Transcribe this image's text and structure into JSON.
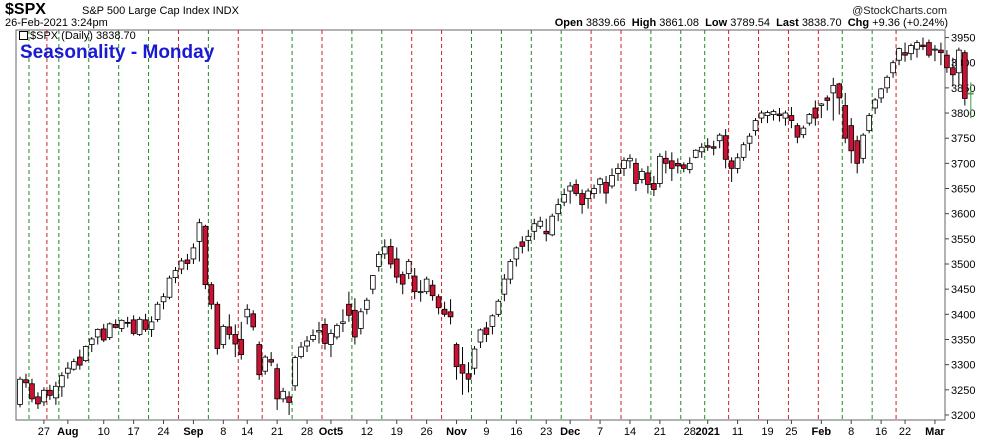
{
  "header": {
    "symbol": "$SPX",
    "subtitle": "S&P 500 Large Cap Index INDX",
    "datetime": "26-Feb-2021 3:24pm",
    "watermark": "@StockCharts.com",
    "open_label": "Open",
    "open": "3839.66",
    "high_label": "High",
    "high": "3861.08",
    "low_label": "Low",
    "low": "3789.54",
    "last_label": "Last",
    "last": "3838.70",
    "chg_label": "Chg",
    "chg": "+9.36 (+0.24%)"
  },
  "legend": {
    "series_label": "$SPX (Daily) 3838.70"
  },
  "annotation": {
    "text": "Seasonality - Monday"
  },
  "colors": {
    "up": "#ffffff",
    "down": "#cc1133",
    "outline": "#000000",
    "green_vline": "#1e8c1e",
    "red_vline": "#d42020",
    "last_bar": "#7ed67e"
  },
  "chart_data": {
    "type": "candlestick",
    "title": "$SPX",
    "ylim": [
      3190,
      3965
    ],
    "yticks": [
      3200,
      3250,
      3300,
      3350,
      3400,
      3450,
      3500,
      3550,
      3600,
      3650,
      3700,
      3750,
      3800,
      3850,
      3900,
      3950
    ],
    "x_tick_labels": [
      {
        "label": "27",
        "index": 4
      },
      {
        "label": "Aug",
        "index": 8,
        "bold": true
      },
      {
        "label": "10",
        "index": 14
      },
      {
        "label": "17",
        "index": 19
      },
      {
        "label": "24",
        "index": 24
      },
      {
        "label": "Sep",
        "index": 29,
        "bold": true
      },
      {
        "label": "8",
        "index": 34
      },
      {
        "label": "14",
        "index": 38
      },
      {
        "label": "21",
        "index": 43
      },
      {
        "label": "28",
        "index": 48
      },
      {
        "label": "Oct5",
        "index": 52,
        "bold": true
      },
      {
        "label": "12",
        "index": 58
      },
      {
        "label": "19",
        "index": 63
      },
      {
        "label": "26",
        "index": 68
      },
      {
        "label": "Nov",
        "index": 73,
        "bold": true
      },
      {
        "label": "9",
        "index": 78
      },
      {
        "label": "16",
        "index": 83
      },
      {
        "label": "23",
        "index": 88
      },
      {
        "label": "Dec",
        "index": 92,
        "bold": true
      },
      {
        "label": "7",
        "index": 97
      },
      {
        "label": "14",
        "index": 102
      },
      {
        "label": "21",
        "index": 107
      },
      {
        "label": "28",
        "index": 112
      },
      {
        "label": "2021",
        "index": 115,
        "bold": true
      },
      {
        "label": "11",
        "index": 120
      },
      {
        "label": "19",
        "index": 125
      },
      {
        "label": "25",
        "index": 129
      },
      {
        "label": "Feb",
        "index": 134,
        "bold": true
      },
      {
        "label": "8",
        "index": 139
      },
      {
        "label": "16",
        "index": 144
      },
      {
        "label": "22",
        "index": 148
      },
      {
        "label": "Mar",
        "index": 153,
        "bold": true
      }
    ],
    "vlines": [
      {
        "index": 1.5,
        "color": "green"
      },
      {
        "index": 4.5,
        "color": "red"
      },
      {
        "index": 6.5,
        "color": "green"
      },
      {
        "index": 11.5,
        "color": "green"
      },
      {
        "index": 16.5,
        "color": "green"
      },
      {
        "index": 21.5,
        "color": "green"
      },
      {
        "index": 26.5,
        "color": "red"
      },
      {
        "index": 31.5,
        "color": "green"
      },
      {
        "index": 36.5,
        "color": "red"
      },
      {
        "index": 40.5,
        "color": "red"
      },
      {
        "index": 45.5,
        "color": "green"
      },
      {
        "index": 50.5,
        "color": "red"
      },
      {
        "index": 55.5,
        "color": "green"
      },
      {
        "index": 60.5,
        "color": "green"
      },
      {
        "index": 65.5,
        "color": "red"
      },
      {
        "index": 70.5,
        "color": "red"
      },
      {
        "index": 75.5,
        "color": "green"
      },
      {
        "index": 80.5,
        "color": "green"
      },
      {
        "index": 85.5,
        "color": "green"
      },
      {
        "index": 90.5,
        "color": "green"
      },
      {
        "index": 95.5,
        "color": "red"
      },
      {
        "index": 100.5,
        "color": "red"
      },
      {
        "index": 105.5,
        "color": "green"
      },
      {
        "index": 110.5,
        "color": "green"
      },
      {
        "index": 114.5,
        "color": "green"
      },
      {
        "index": 118.5,
        "color": "red"
      },
      {
        "index": 123.5,
        "color": "red"
      },
      {
        "index": 128.5,
        "color": "red"
      },
      {
        "index": 133.5,
        "color": "red"
      },
      {
        "index": 137.5,
        "color": "green"
      },
      {
        "index": 142.5,
        "color": "green"
      },
      {
        "index": 146.5,
        "color": "red"
      }
    ],
    "ohlc": [
      [
        3221,
        3276,
        3215,
        3271
      ],
      [
        3270,
        3282,
        3254,
        3264
      ],
      [
        3262,
        3272,
        3225,
        3232
      ],
      [
        3236,
        3245,
        3212,
        3222
      ],
      [
        3226,
        3255,
        3218,
        3249
      ],
      [
        3249,
        3260,
        3230,
        3239
      ],
      [
        3234,
        3266,
        3220,
        3257
      ],
      [
        3256,
        3285,
        3236,
        3278
      ],
      [
        3283,
        3305,
        3272,
        3293
      ],
      [
        3291,
        3312,
        3288,
        3306
      ],
      [
        3315,
        3330,
        3290,
        3299
      ],
      [
        3308,
        3338,
        3305,
        3336
      ],
      [
        3340,
        3355,
        3325,
        3351
      ],
      [
        3355,
        3372,
        3340,
        3370
      ],
      [
        3371,
        3381,
        3345,
        3349
      ],
      [
        3354,
        3384,
        3349,
        3381
      ],
      [
        3380,
        3390,
        3372,
        3374
      ],
      [
        3372,
        3390,
        3365,
        3388
      ],
      [
        3384,
        3395,
        3374,
        3382
      ],
      [
        3389,
        3398,
        3358,
        3362
      ],
      [
        3360,
        3395,
        3357,
        3390
      ],
      [
        3389,
        3401,
        3365,
        3370
      ],
      [
        3370,
        3396,
        3355,
        3385
      ],
      [
        3390,
        3425,
        3385,
        3420
      ],
      [
        3425,
        3442,
        3410,
        3435
      ],
      [
        3434,
        3477,
        3430,
        3472
      ],
      [
        3473,
        3494,
        3462,
        3487
      ],
      [
        3490,
        3512,
        3480,
        3506
      ],
      [
        3508,
        3520,
        3488,
        3501
      ],
      [
        3510,
        3541,
        3500,
        3532
      ],
      [
        3545,
        3590,
        3505,
        3582
      ],
      [
        3575,
        3578,
        3450,
        3459
      ],
      [
        3459,
        3464,
        3410,
        3420
      ],
      [
        3420,
        3425,
        3320,
        3332
      ],
      [
        3340,
        3380,
        3332,
        3376
      ],
      [
        3375,
        3400,
        3350,
        3360
      ],
      [
        3360,
        3380,
        3315,
        3341
      ],
      [
        3350,
        3385,
        3310,
        3320
      ],
      [
        3395,
        3420,
        3380,
        3410
      ],
      [
        3401,
        3408,
        3368,
        3375
      ],
      [
        3340,
        3346,
        3270,
        3280
      ],
      [
        3287,
        3319,
        3280,
        3315
      ],
      [
        3310,
        3325,
        3297,
        3305
      ],
      [
        3292,
        3302,
        3210,
        3232
      ],
      [
        3232,
        3254,
        3225,
        3247
      ],
      [
        3236,
        3247,
        3200,
        3225
      ],
      [
        3258,
        3318,
        3248,
        3314
      ],
      [
        3316,
        3345,
        3312,
        3335
      ],
      [
        3337,
        3357,
        3325,
        3347
      ],
      [
        3350,
        3370,
        3345,
        3358
      ],
      [
        3365,
        3385,
        3342,
        3368
      ],
      [
        3380,
        3392,
        3330,
        3342
      ],
      [
        3340,
        3370,
        3315,
        3362
      ],
      [
        3355,
        3382,
        3350,
        3378
      ],
      [
        3382,
        3410,
        3365,
        3385
      ],
      [
        3420,
        3445,
        3385,
        3398
      ],
      [
        3408,
        3432,
        3340,
        3355
      ],
      [
        3372,
        3412,
        3360,
        3405
      ],
      [
        3410,
        3433,
        3400,
        3428
      ],
      [
        3450,
        3478,
        3440,
        3477
      ],
      [
        3495,
        3525,
        3485,
        3519
      ],
      [
        3520,
        3549,
        3510,
        3534
      ],
      [
        3535,
        3550,
        3491,
        3500
      ],
      [
        3510,
        3533,
        3462,
        3474
      ],
      [
        3479,
        3485,
        3440,
        3460
      ],
      [
        3481,
        3510,
        3470,
        3505
      ],
      [
        3476,
        3492,
        3430,
        3445
      ],
      [
        3445,
        3468,
        3425,
        3445
      ],
      [
        3445,
        3475,
        3440,
        3470
      ],
      [
        3458,
        3468,
        3427,
        3437
      ],
      [
        3435,
        3440,
        3400,
        3413
      ],
      [
        3410,
        3425,
        3395,
        3400
      ],
      [
        3405,
        3430,
        3380,
        3395
      ],
      [
        3340,
        3344,
        3270,
        3296
      ],
      [
        3300,
        3335,
        3240,
        3283
      ],
      [
        3282,
        3305,
        3245,
        3271
      ],
      [
        3293,
        3337,
        3280,
        3331
      ],
      [
        3345,
        3372,
        3333,
        3369
      ],
      [
        3373,
        3385,
        3345,
        3360
      ],
      [
        3376,
        3400,
        3360,
        3397
      ],
      [
        3400,
        3430,
        3395,
        3426
      ],
      [
        3440,
        3480,
        3426,
        3470
      ],
      [
        3470,
        3510,
        3460,
        3505
      ],
      [
        3510,
        3535,
        3495,
        3532
      ],
      [
        3544,
        3555,
        3521,
        3535
      ],
      [
        3547,
        3568,
        3525,
        3555
      ],
      [
        3565,
        3590,
        3548,
        3580
      ],
      [
        3575,
        3594,
        3570,
        3585
      ],
      [
        3565,
        3590,
        3545,
        3560
      ],
      [
        3558,
        3600,
        3555,
        3595
      ],
      [
        3600,
        3630,
        3585,
        3618
      ],
      [
        3623,
        3650,
        3615,
        3638
      ],
      [
        3645,
        3663,
        3620,
        3655
      ],
      [
        3658,
        3668,
        3635,
        3640
      ],
      [
        3640,
        3648,
        3600,
        3618
      ],
      [
        3630,
        3650,
        3610,
        3645
      ],
      [
        3640,
        3658,
        3630,
        3650
      ],
      [
        3658,
        3672,
        3640,
        3669
      ],
      [
        3662,
        3675,
        3620,
        3641
      ],
      [
        3655,
        3690,
        3650,
        3676
      ],
      [
        3680,
        3700,
        3665,
        3690
      ],
      [
        3690,
        3712,
        3675,
        3706
      ],
      [
        3705,
        3718,
        3690,
        3710
      ],
      [
        3700,
        3710,
        3645,
        3660
      ],
      [
        3668,
        3690,
        3660,
        3684
      ],
      [
        3681,
        3695,
        3640,
        3658
      ],
      [
        3660,
        3675,
        3635,
        3648
      ],
      [
        3660,
        3720,
        3652,
        3714
      ],
      [
        3710,
        3725,
        3680,
        3700
      ],
      [
        3705,
        3722,
        3665,
        3690
      ],
      [
        3700,
        3710,
        3680,
        3695
      ],
      [
        3697,
        3702,
        3682,
        3690
      ],
      [
        3688,
        3712,
        3680,
        3700
      ],
      [
        3712,
        3728,
        3710,
        3726
      ],
      [
        3723,
        3740,
        3711,
        3732
      ],
      [
        3735,
        3750,
        3725,
        3732
      ],
      [
        3733,
        3745,
        3716,
        3730
      ],
      [
        3745,
        3760,
        3730,
        3756
      ],
      [
        3755,
        3768,
        3690,
        3708
      ],
      [
        3705,
        3712,
        3663,
        3690
      ],
      [
        3690,
        3720,
        3680,
        3711
      ],
      [
        3712,
        3742,
        3705,
        3737
      ],
      [
        3740,
        3760,
        3725,
        3754
      ],
      [
        3765,
        3790,
        3755,
        3785
      ],
      [
        3790,
        3805,
        3780,
        3800
      ],
      [
        3795,
        3805,
        3780,
        3801
      ],
      [
        3797,
        3807,
        3785,
        3803
      ],
      [
        3798,
        3810,
        3783,
        3795
      ],
      [
        3790,
        3805,
        3775,
        3800
      ],
      [
        3795,
        3812,
        3770,
        3785
      ],
      [
        3775,
        3780,
        3740,
        3752
      ],
      [
        3757,
        3775,
        3750,
        3770
      ],
      [
        3780,
        3800,
        3775,
        3797
      ],
      [
        3810,
        3825,
        3775,
        3790
      ],
      [
        3815,
        3820,
        3790,
        3818
      ],
      [
        3830,
        3835,
        3805,
        3825
      ],
      [
        3840,
        3870,
        3785,
        3855
      ],
      [
        3858,
        3860,
        3797,
        3830
      ],
      [
        3815,
        3840,
        3740,
        3750
      ],
      [
        3775,
        3790,
        3700,
        3725
      ],
      [
        3745,
        3755,
        3680,
        3700
      ],
      [
        3710,
        3760,
        3700,
        3756
      ],
      [
        3765,
        3800,
        3760,
        3795
      ],
      [
        3810,
        3830,
        3798,
        3826
      ],
      [
        3830,
        3850,
        3820,
        3848
      ],
      [
        3850,
        3875,
        3840,
        3871
      ],
      [
        3880,
        3905,
        3870,
        3900
      ],
      [
        3905,
        3930,
        3895,
        3928
      ],
      [
        3920,
        3940,
        3902,
        3915
      ],
      [
        3918,
        3938,
        3905,
        3934
      ],
      [
        3927,
        3945,
        3910,
        3940
      ],
      [
        3935,
        3950,
        3925,
        3932
      ],
      [
        3940,
        3946,
        3910,
        3915
      ],
      [
        3925,
        3935,
        3903,
        3927
      ],
      [
        3925,
        3940,
        3895,
        3920
      ],
      [
        3915,
        3925,
        3880,
        3890
      ],
      [
        3890,
        3910,
        3853,
        3876
      ],
      [
        3880,
        3930,
        3855,
        3925
      ],
      [
        3920,
        3925,
        3815,
        3829
      ],
      [
        3839.66,
        3861.08,
        3789.54,
        3838.7
      ]
    ]
  }
}
